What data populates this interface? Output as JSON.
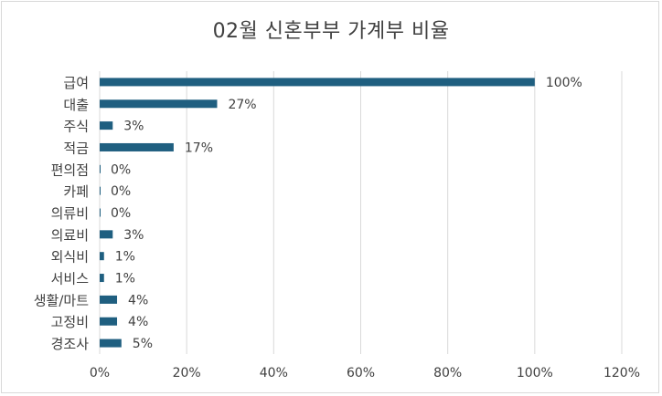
{
  "chart_data": {
    "type": "bar",
    "orientation": "horizontal",
    "title": "02월 신혼부부 가계부 비율",
    "categories": [
      "급여",
      "대출",
      "주식",
      "적금",
      "편의점",
      "카페",
      "의류비",
      "의료비",
      "외식비",
      "서비스",
      "생활/마트",
      "고정비",
      "경조사"
    ],
    "values": [
      100,
      27,
      3,
      17,
      0,
      0,
      0,
      3,
      1,
      1,
      4,
      4,
      5
    ],
    "data_labels": [
      "100%",
      "27%",
      "3%",
      "17%",
      "0%",
      "0%",
      "0%",
      "3%",
      "1%",
      "1%",
      "4%",
      "4%",
      "5%"
    ],
    "xlim": [
      0,
      120
    ],
    "x_ticks": [
      0,
      20,
      40,
      60,
      80,
      100,
      120
    ],
    "x_tick_labels": [
      "0%",
      "20%",
      "40%",
      "60%",
      "80%",
      "100%",
      "120%"
    ],
    "xlabel": "",
    "ylabel": "",
    "grid": "vertical",
    "legend": "none",
    "bar_color": "#1f5f80",
    "grid_color": "#d9d9d9",
    "text_color": "#404040"
  }
}
